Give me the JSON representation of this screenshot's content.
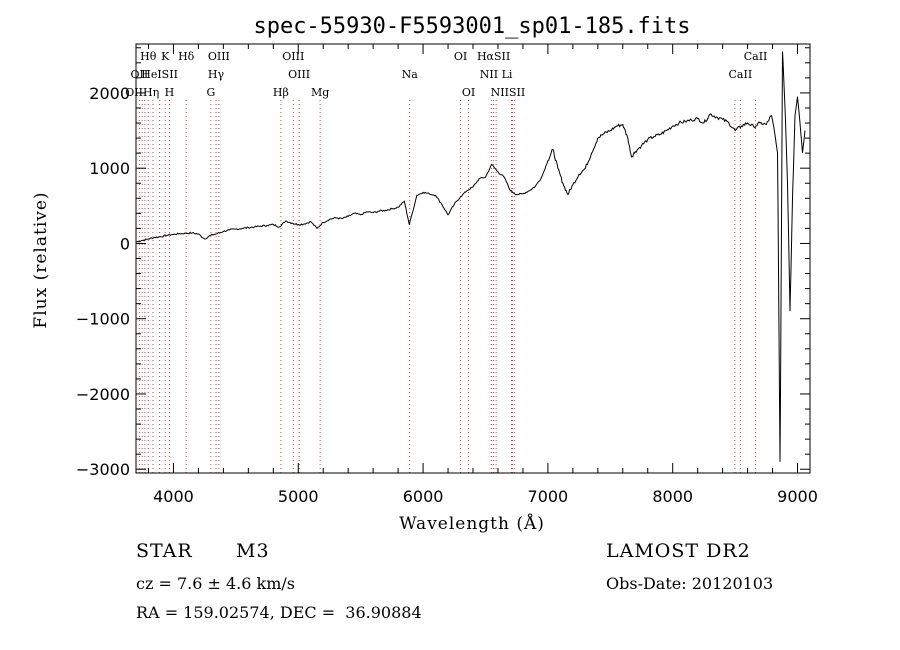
{
  "chart_data": {
    "type": "line",
    "title": "spec-55930-F5593001_sp01-185.fits",
    "xlabel": "Wavelength (Å)",
    "ylabel": "Flux (relative)",
    "xlim": [
      3700,
      9100
    ],
    "ylim": [
      -3050,
      2650
    ],
    "x_ticks": [
      4000,
      5000,
      6000,
      7000,
      8000,
      9000
    ],
    "y_ticks": [
      -3000,
      -2000,
      -1000,
      0,
      1000,
      2000
    ],
    "grid": false,
    "line_color": "#000000",
    "marker_line_color": "#dd4444",
    "series": [
      {
        "points": [
          [
            3700,
            20
          ],
          [
            3750,
            40
          ],
          [
            3800,
            60
          ],
          [
            3850,
            80
          ],
          [
            3900,
            90
          ],
          [
            3950,
            110
          ],
          [
            4000,
            120
          ],
          [
            4050,
            130
          ],
          [
            4100,
            135
          ],
          [
            4150,
            140
          ],
          [
            4200,
            125
          ],
          [
            4250,
            60
          ],
          [
            4300,
            110
          ],
          [
            4350,
            130
          ],
          [
            4400,
            160
          ],
          [
            4450,
            180
          ],
          [
            4500,
            190
          ],
          [
            4550,
            200
          ],
          [
            4600,
            210
          ],
          [
            4650,
            220
          ],
          [
            4700,
            230
          ],
          [
            4750,
            240
          ],
          [
            4800,
            250
          ],
          [
            4850,
            220
          ],
          [
            4900,
            300
          ],
          [
            4950,
            270
          ],
          [
            5000,
            250
          ],
          [
            5050,
            260
          ],
          [
            5100,
            290
          ],
          [
            5150,
            200
          ],
          [
            5200,
            280
          ],
          [
            5250,
            320
          ],
          [
            5300,
            340
          ],
          [
            5350,
            330
          ],
          [
            5400,
            360
          ],
          [
            5450,
            400
          ],
          [
            5500,
            380
          ],
          [
            5550,
            420
          ],
          [
            5600,
            410
          ],
          [
            5650,
            430
          ],
          [
            5700,
            440
          ],
          [
            5750,
            460
          ],
          [
            5800,
            480
          ],
          [
            5850,
            560
          ],
          [
            5890,
            250
          ],
          [
            5950,
            640
          ],
          [
            6000,
            680
          ],
          [
            6050,
            660
          ],
          [
            6100,
            640
          ],
          [
            6150,
            520
          ],
          [
            6200,
            380
          ],
          [
            6250,
            520
          ],
          [
            6300,
            620
          ],
          [
            6350,
            700
          ],
          [
            6400,
            750
          ],
          [
            6450,
            860
          ],
          [
            6500,
            880
          ],
          [
            6550,
            1050
          ],
          [
            6600,
            950
          ],
          [
            6650,
            880
          ],
          [
            6700,
            700
          ],
          [
            6750,
            650
          ],
          [
            6800,
            660
          ],
          [
            6850,
            700
          ],
          [
            6900,
            760
          ],
          [
            6950,
            880
          ],
          [
            7000,
            1100
          ],
          [
            7040,
            1250
          ],
          [
            7080,
            1000
          ],
          [
            7120,
            800
          ],
          [
            7160,
            650
          ],
          [
            7200,
            780
          ],
          [
            7250,
            920
          ],
          [
            7300,
            1000
          ],
          [
            7350,
            1200
          ],
          [
            7400,
            1400
          ],
          [
            7450,
            1460
          ],
          [
            7500,
            1500
          ],
          [
            7550,
            1560
          ],
          [
            7600,
            1580
          ],
          [
            7640,
            1400
          ],
          [
            7670,
            1150
          ],
          [
            7700,
            1220
          ],
          [
            7750,
            1300
          ],
          [
            7800,
            1380
          ],
          [
            7850,
            1420
          ],
          [
            7900,
            1450
          ],
          [
            7950,
            1500
          ],
          [
            8000,
            1560
          ],
          [
            8050,
            1600
          ],
          [
            8100,
            1620
          ],
          [
            8150,
            1640
          ],
          [
            8200,
            1660
          ],
          [
            8250,
            1600
          ],
          [
            8300,
            1720
          ],
          [
            8350,
            1680
          ],
          [
            8400,
            1650
          ],
          [
            8450,
            1600
          ],
          [
            8500,
            1500
          ],
          [
            8550,
            1560
          ],
          [
            8600,
            1600
          ],
          [
            8650,
            1550
          ],
          [
            8700,
            1600
          ],
          [
            8750,
            1580
          ],
          [
            8790,
            1700
          ],
          [
            8810,
            1550
          ],
          [
            8840,
            1200
          ],
          [
            8860,
            -2900
          ],
          [
            8880,
            2550
          ],
          [
            8900,
            1800
          ],
          [
            8920,
            800
          ],
          [
            8940,
            -900
          ],
          [
            8960,
            600
          ],
          [
            8980,
            1700
          ],
          [
            9000,
            1950
          ],
          [
            9020,
            1600
          ],
          [
            9040,
            1200
          ],
          [
            9060,
            1500
          ]
        ]
      }
    ],
    "spectral_lines": [
      {
        "label": "Hθ",
        "x": 3798,
        "row": 0
      },
      {
        "label": "K",
        "x": 3934,
        "row": 0
      },
      {
        "label": "Hδ",
        "x": 4102,
        "row": 0
      },
      {
        "label": "OIII",
        "x": 4364,
        "row": 0
      },
      {
        "label": "OIII",
        "x": 4960,
        "row": 0
      },
      {
        "label": "OI",
        "x": 6300,
        "row": 0
      },
      {
        "label": "HαSII",
        "x": 6565,
        "row": 0
      },
      {
        "label": "CaII",
        "x": 8664,
        "row": 0
      },
      {
        "label": "OII",
        "x": 3727,
        "row": 1
      },
      {
        "label": "HeISII",
        "x": 3889,
        "row": 1
      },
      {
        "label": "Hγ",
        "x": 4341,
        "row": 1
      },
      {
        "label": "OIII",
        "x": 5007,
        "row": 1
      },
      {
        "label": "Na",
        "x": 5893,
        "row": 1
      },
      {
        "label": "NII Li",
        "x": 6585,
        "row": 1
      },
      {
        "label": "CaII",
        "x": 8542,
        "row": 1
      },
      {
        "label": "OIIHη",
        "x": 3750,
        "row": 2
      },
      {
        "label": "H",
        "x": 3968,
        "row": 2
      },
      {
        "label": "G",
        "x": 4300,
        "row": 2
      },
      {
        "label": "Hβ",
        "x": 4861,
        "row": 2
      },
      {
        "label": "Mg",
        "x": 5175,
        "row": 2
      },
      {
        "label": "OI",
        "x": 6364,
        "row": 2
      },
      {
        "label": "NIISII",
        "x": 6680,
        "row": 2
      }
    ],
    "marker_x": [
      3727,
      3750,
      3771,
      3798,
      3835,
      3889,
      3934,
      3968,
      4102,
      4300,
      4341,
      4364,
      4861,
      4960,
      5007,
      5175,
      5893,
      6300,
      6364,
      6548,
      6565,
      6585,
      6708,
      6716,
      6731,
      8498,
      8542,
      8664
    ]
  },
  "info": {
    "object_type": "STAR",
    "subclass": "M3",
    "survey": "LAMOST DR2",
    "cz": "cz = 7.6 ± 4.6 km/s",
    "obs_date": "Obs-Date: 20120103",
    "coords": "RA = 159.02574, DEC =  36.90884"
  }
}
